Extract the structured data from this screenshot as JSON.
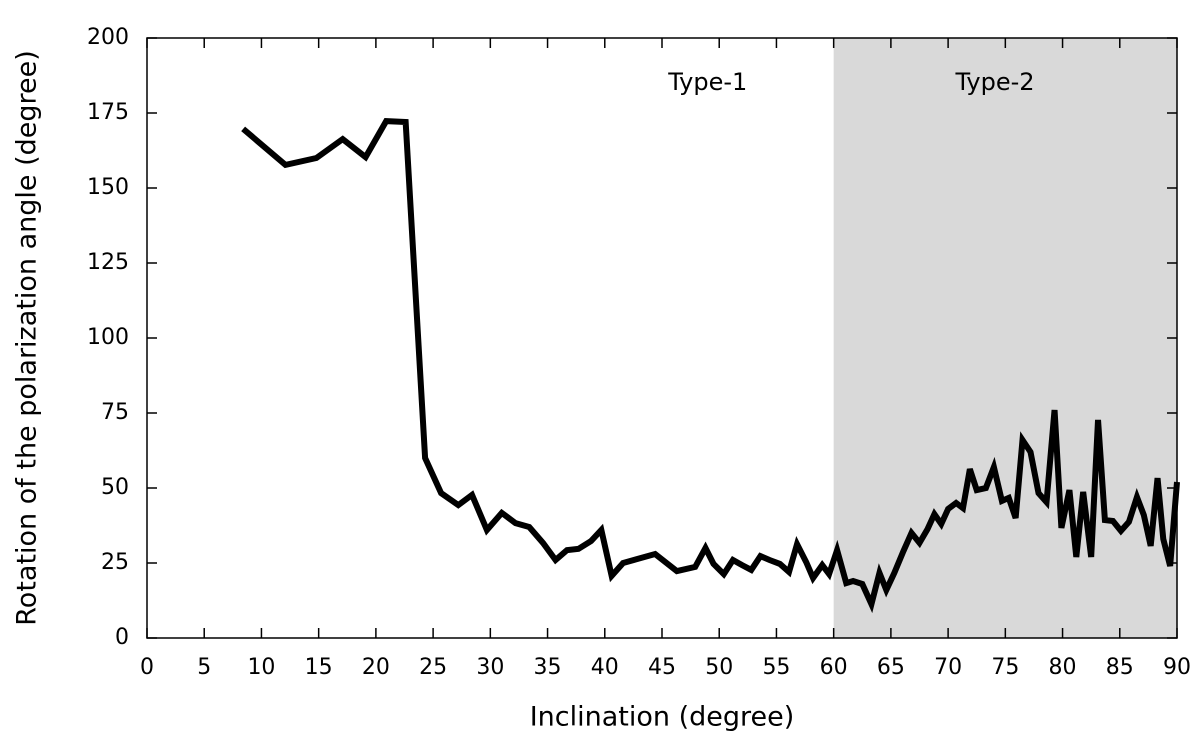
{
  "chart_data": {
    "type": "line",
    "x_label": "Inclination (degree)",
    "y_label": "Rotation of the polarization angle (degree)",
    "xlim": [
      0,
      90
    ],
    "ylim": [
      0,
      200
    ],
    "xticks": [
      0,
      5,
      10,
      15,
      20,
      25,
      30,
      35,
      40,
      45,
      50,
      55,
      60,
      65,
      70,
      75,
      80,
      85,
      90
    ],
    "yticks": [
      0,
      25,
      50,
      75,
      100,
      125,
      150,
      175,
      200
    ],
    "shaded_regions": [
      {
        "xlim": [
          60,
          90
        ],
        "color": "#d9d9d9"
      }
    ],
    "annotations": [
      {
        "text": "Type-1",
        "x": 49,
        "y": 185
      },
      {
        "text": "Type-2",
        "x": 74.1,
        "y": 185
      }
    ],
    "series": [
      {
        "color": "#000000",
        "x": [
          8.4,
          12.1,
          14.8,
          17.1,
          19.1,
          20.9,
          22.6,
          24.3,
          25.7,
          27.2,
          28.4,
          29.7,
          31.0,
          32.2,
          33.4,
          34.6,
          35.7,
          36.7,
          37.7,
          38.8,
          39.7,
          40.6,
          41.6,
          42.8,
          44.4,
          46.3,
          47.9,
          48.8,
          49.5,
          50.4,
          51.2,
          52.0,
          52.8,
          53.6,
          54.4,
          55.3,
          56.1,
          56.8,
          57.6,
          58.2,
          59.0,
          59.6,
          60.3,
          61.1,
          61.7,
          62.5,
          63.3,
          64.0,
          64.6,
          65.3,
          66.1,
          66.8,
          67.5,
          68.2,
          68.8,
          69.4,
          70.0,
          70.7,
          71.3,
          71.9,
          72.5,
          73.3,
          74.0,
          74.7,
          75.3,
          75.9,
          76.5,
          77.2,
          77.9,
          78.6,
          79.3,
          79.9,
          80.6,
          81.2,
          81.8,
          82.5,
          83.1,
          83.7,
          84.4,
          85.1,
          85.8,
          86.5,
          87.1,
          87.7,
          88.3,
          88.8,
          89.4,
          90.0
        ],
        "values": [
          169.7,
          157.7,
          160,
          166.3,
          160.3,
          172.3,
          172,
          60,
          48.3,
          44.3,
          47.7,
          36,
          41.7,
          38.3,
          37,
          31.7,
          26,
          29.3,
          29.7,
          32.3,
          36,
          20.7,
          25,
          26.3,
          28,
          22.3,
          23.7,
          30,
          24.7,
          21.3,
          26,
          24.3,
          22.7,
          27.3,
          26,
          24.7,
          22,
          31.3,
          25.3,
          20,
          24.3,
          21.3,
          29.3,
          18.3,
          19,
          18,
          11.3,
          21.7,
          16,
          21.7,
          29,
          35,
          31.7,
          36.3,
          41.3,
          38,
          43,
          45,
          43.3,
          56.3,
          49.3,
          50,
          57,
          45.7,
          46.7,
          40,
          66,
          62,
          48.3,
          45.3,
          76,
          36.7,
          49.3,
          27,
          48.7,
          27,
          72.7,
          39.3,
          39,
          35.7,
          38.7,
          47,
          41,
          30.7,
          53.3,
          33,
          24,
          52
        ]
      }
    ]
  }
}
